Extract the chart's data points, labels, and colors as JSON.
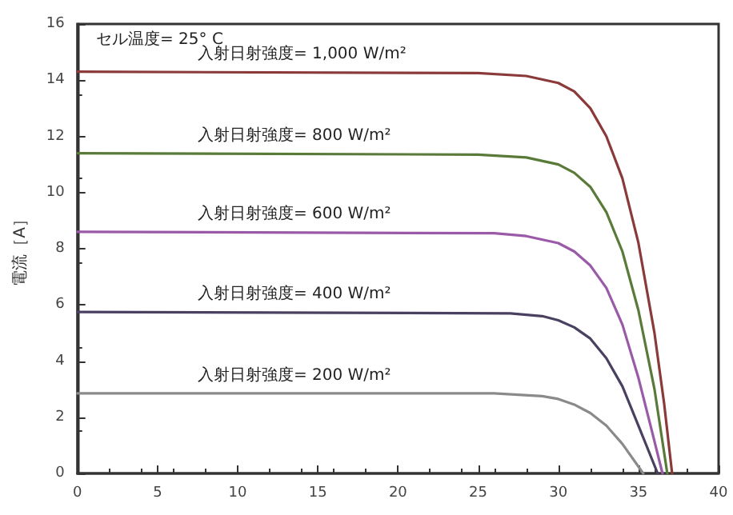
{
  "chart_data": {
    "type": "line",
    "ylabel": "電流［A］",
    "xlim": [
      0,
      40
    ],
    "ylim": [
      0,
      16
    ],
    "xticks": [
      0,
      5,
      10,
      15,
      20,
      25,
      30,
      35,
      40
    ],
    "yticks": [
      0,
      2,
      4,
      6,
      8,
      10,
      12,
      14,
      16
    ],
    "grid": false,
    "marker": "none",
    "line_style": "solid",
    "annotations": [
      "セル温度= 25° C"
    ],
    "series": [
      {
        "name": "入射日射強度= 1,000 W/m²",
        "color": "#8b3a3a",
        "x": [
          0,
          25,
          28,
          30,
          31,
          32,
          33,
          34,
          35,
          36,
          36.6,
          37.1
        ],
        "values": [
          14.3,
          14.25,
          14.15,
          13.9,
          13.6,
          13.0,
          12.0,
          10.5,
          8.2,
          5.0,
          2.5,
          0
        ]
      },
      {
        "name": "入射日射強度= 800 W/m²",
        "color": "#5a7a3a",
        "x": [
          0,
          25,
          28,
          30,
          31,
          32,
          33,
          34,
          35,
          36,
          36.8
        ],
        "values": [
          11.4,
          11.35,
          11.25,
          11.0,
          10.7,
          10.2,
          9.3,
          7.9,
          5.8,
          3.0,
          0
        ]
      },
      {
        "name": "入射日射強度= 600 W/m²",
        "color": "#9a5aa8",
        "x": [
          0,
          26,
          28,
          30,
          31,
          32,
          33,
          34,
          35,
          35.8,
          36.5
        ],
        "values": [
          8.6,
          8.55,
          8.45,
          8.2,
          7.9,
          7.4,
          6.6,
          5.3,
          3.4,
          1.6,
          0
        ]
      },
      {
        "name": "入射日射強度= 400 W/m²",
        "color": "#4a4060",
        "x": [
          0,
          27,
          29,
          30,
          31,
          32,
          33,
          34,
          35,
          36.2
        ],
        "values": [
          5.75,
          5.7,
          5.6,
          5.45,
          5.2,
          4.8,
          4.1,
          3.1,
          1.7,
          0
        ]
      },
      {
        "name": "入射日射強度= 200 W/m²",
        "color": "#8a8a8a",
        "x": [
          0,
          26,
          29,
          30,
          31,
          32,
          33,
          34,
          35.3
        ],
        "values": [
          2.85,
          2.85,
          2.75,
          2.65,
          2.45,
          2.15,
          1.7,
          1.05,
          0
        ]
      }
    ]
  }
}
